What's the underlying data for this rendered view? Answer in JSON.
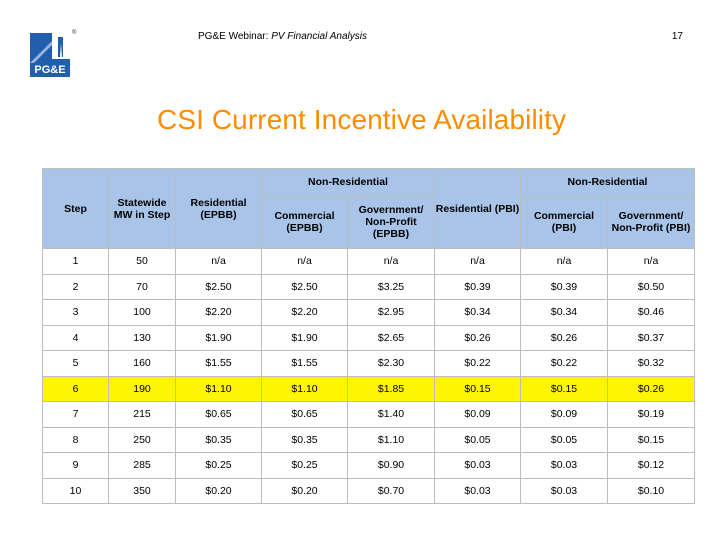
{
  "header": {
    "title_prefix": "PG&E Webinar: ",
    "title_italic": "PV Financial Analysis",
    "page_number": "17",
    "logo_text": "PG&E",
    "logo_mark": "®"
  },
  "slide_title": "CSI Current Incentive Availability",
  "table": {
    "headers": {
      "step": "Step",
      "statewide": "Statewide MW in Step",
      "residential_epbb": "Residential (EPBB)",
      "non_residential_1": "Non-Residential",
      "commercial_epbb": "Commercial (EPBB)",
      "government_epbb": "Government/ Non-Profit (EPBB)",
      "residential_pbi": "Residential (PBI)",
      "non_residential_2": "Non-Residential",
      "commercial_pbi": "Commercial (PBI)",
      "government_pbi": "Government/ Non-Profit (PBI)"
    },
    "rows": [
      [
        "1",
        "50",
        "n/a",
        "n/a",
        "n/a",
        "n/a",
        "n/a",
        "n/a"
      ],
      [
        "2",
        "70",
        "$2.50",
        "$2.50",
        "$3.25",
        "$0.39",
        "$0.39",
        "$0.50"
      ],
      [
        "3",
        "100",
        "$2.20",
        "$2.20",
        "$2.95",
        "$0.34",
        "$0.34",
        "$0.46"
      ],
      [
        "4",
        "130",
        "$1.90",
        "$1.90",
        "$2.65",
        "$0.26",
        "$0.26",
        "$0.37"
      ],
      [
        "5",
        "160",
        "$1.55",
        "$1.55",
        "$2.30",
        "$0.22",
        "$0.22",
        "$0.32"
      ],
      [
        "6",
        "190",
        "$1.10",
        "$1.10",
        "$1.85",
        "$0.15",
        "$0.15",
        "$0.26"
      ],
      [
        "7",
        "215",
        "$0.65",
        "$0.65",
        "$1.40",
        "$0.09",
        "$0.09",
        "$0.19"
      ],
      [
        "8",
        "250",
        "$0.35",
        "$0.35",
        "$1.10",
        "$0.05",
        "$0.05",
        "$0.15"
      ],
      [
        "9",
        "285",
        "$0.25",
        "$0.25",
        "$0.90",
        "$0.03",
        "$0.03",
        "$0.12"
      ],
      [
        "10",
        "350",
        "$0.20",
        "$0.20",
        "$0.70",
        "$0.03",
        "$0.03",
        "$0.10"
      ]
    ],
    "highlight_row_index": 5
  },
  "colors": {
    "title": "#ff8c00",
    "header_bg": "#a8c4e8",
    "highlight": "#fff500",
    "logo_blue": "#1f5fae"
  }
}
